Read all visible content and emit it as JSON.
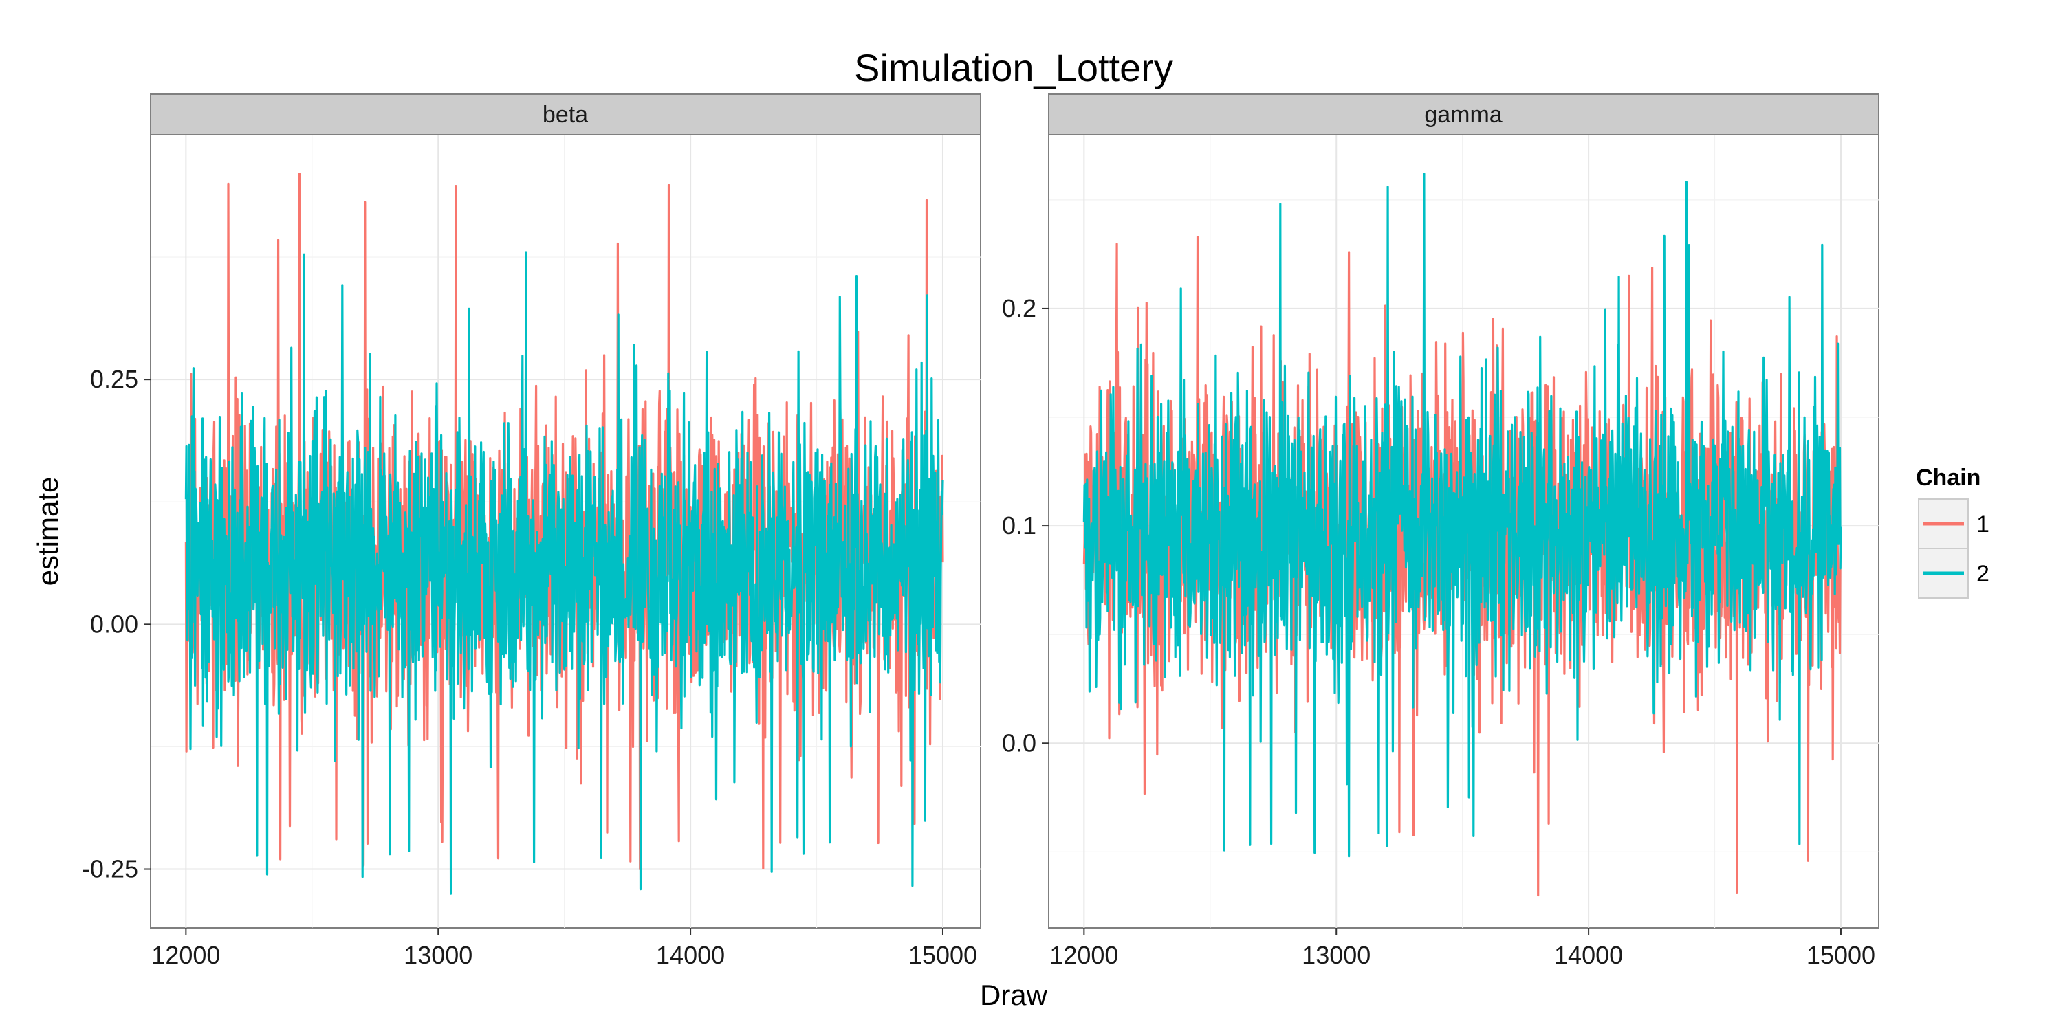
{
  "chart_data": {
    "type": "line",
    "title": "Simulation_Lottery",
    "xlabel": "Draw",
    "ylabel": "estimate",
    "grid": true,
    "legend_position": "right",
    "legend": {
      "title": "Chain",
      "entries": [
        {
          "label": "1",
          "color": "#F8766D"
        },
        {
          "label": "2",
          "color": "#00BFC4"
        }
      ]
    },
    "panels": [
      {
        "strip": "beta",
        "xlim": [
          11860,
          15150
        ],
        "ylim": [
          -0.31,
          0.5
        ],
        "xticks": [
          12000,
          13000,
          14000,
          15000
        ],
        "xtick_labels": [
          "12000",
          "13000",
          "14000",
          "15000"
        ],
        "yticks": [
          -0.25,
          0.0,
          0.25
        ],
        "ytick_labels": [
          "-0.25",
          "0.00",
          "0.25"
        ],
        "series": [
          {
            "name": "1",
            "color": "#F8766D",
            "x_range": [
              12000,
              15000
            ],
            "center": 0.06,
            "sd": 0.075,
            "max": 0.46,
            "min": -0.25
          },
          {
            "name": "2",
            "color": "#00BFC4",
            "x_range": [
              12000,
              15000
            ],
            "center": 0.06,
            "sd": 0.075,
            "max": 0.38,
            "min": -0.275
          }
        ]
      },
      {
        "strip": "gamma",
        "xlim": [
          11860,
          15150
        ],
        "ylim": [
          -0.085,
          0.28
        ],
        "xticks": [
          12000,
          13000,
          14000,
          15000
        ],
        "xtick_labels": [
          "12000",
          "13000",
          "14000",
          "15000"
        ],
        "yticks": [
          0.0,
          0.1,
          0.2
        ],
        "ytick_labels": [
          "0.0",
          "0.1",
          "0.2"
        ],
        "series": [
          {
            "name": "1",
            "color": "#F8766D",
            "x_range": [
              12000,
              15000
            ],
            "center": 0.097,
            "sd": 0.034,
            "max": 0.233,
            "min": -0.07
          },
          {
            "name": "2",
            "color": "#00BFC4",
            "x_range": [
              12000,
              15000
            ],
            "center": 0.097,
            "sd": 0.034,
            "max": 0.262,
            "min": -0.052
          }
        ]
      }
    ]
  }
}
